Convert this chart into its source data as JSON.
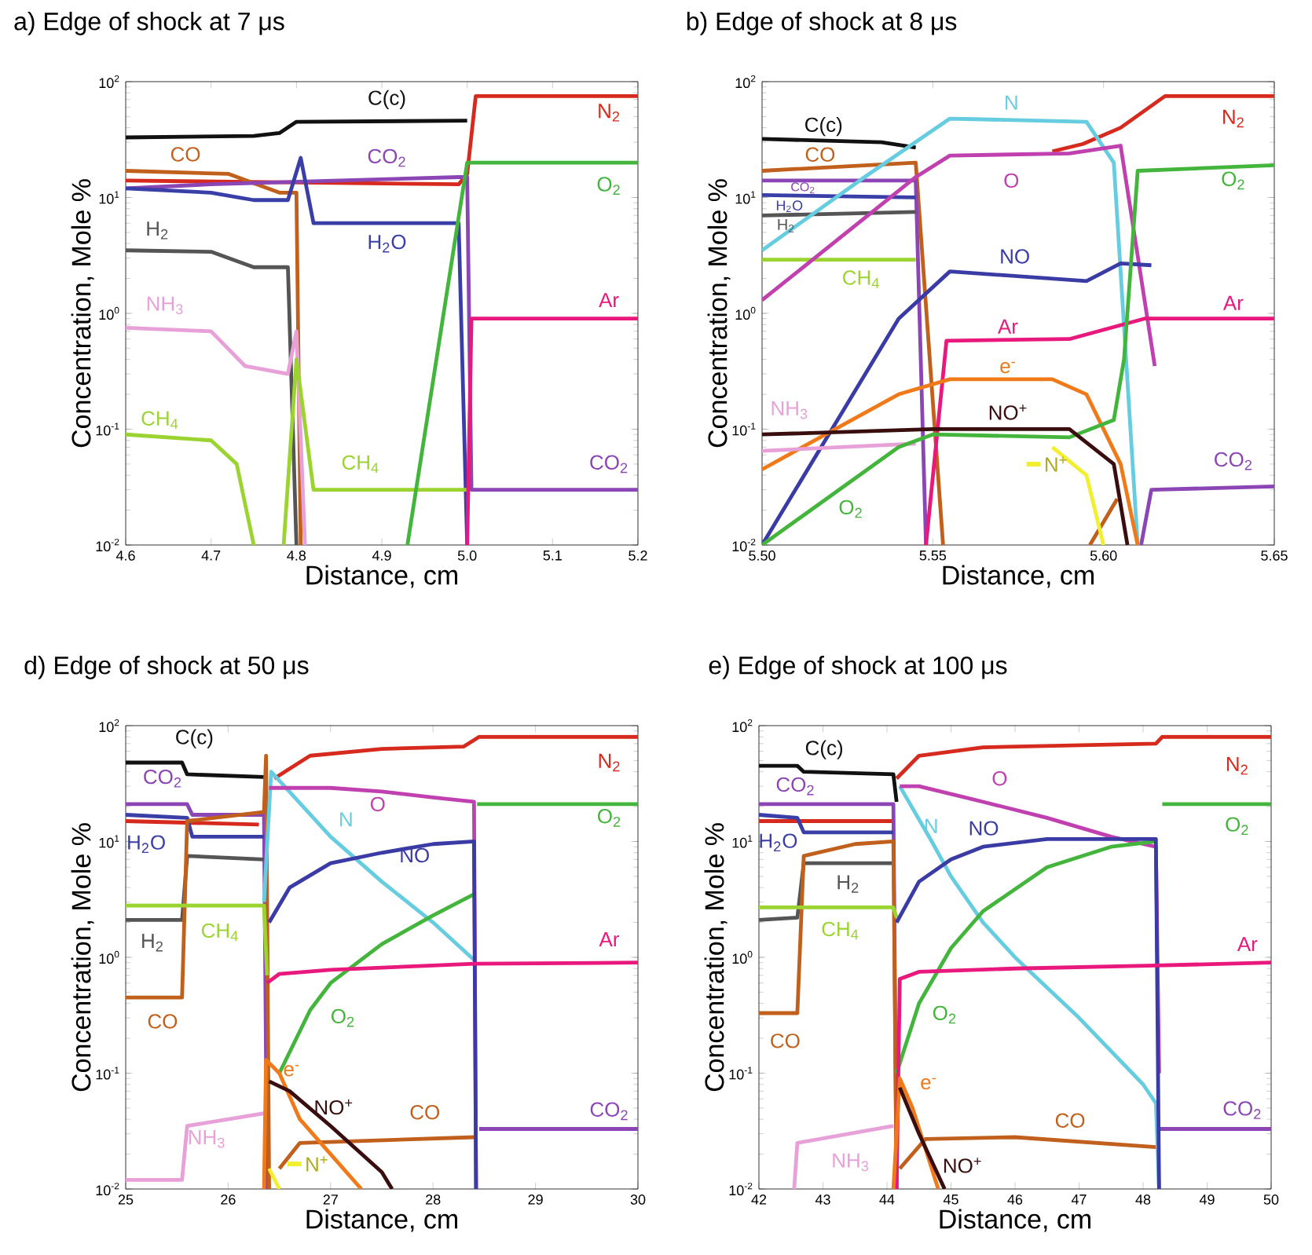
{
  "chart_data": [
    {
      "type": "line",
      "title": "a) Edge of shock at 7 μs",
      "xlabel": "Distance, cm",
      "ylabel": "Concentration, Mole %",
      "log": true,
      "xlim": [
        4.6,
        5.2
      ],
      "xticks": [
        4.6,
        4.7,
        4.8,
        4.9,
        {
          "value": 5.0,
          "label": "5.0"
        },
        5.1,
        5.2
      ],
      "ylim": [
        0.01,
        100
      ],
      "yticks": [
        {
          "value": 0.01,
          "label": "10$^{-2}$"
        },
        {
          "value": 0.1,
          "label": "10$^{-1}$"
        },
        {
          "value": 1,
          "label": "10$^{0}$"
        },
        {
          "value": 10,
          "label": "10$^{1}$"
        },
        {
          "value": 100,
          "label": "10$^{2}$"
        }
      ],
      "series": [
        {
          "name": "C(c)",
          "color": "#111111",
          "x": [
            4.6,
            4.75,
            4.78,
            4.8,
            5.0
          ],
          "values": [
            33,
            34,
            36,
            45,
            46
          ]
        },
        {
          "name": "N$_{2}$",
          "color": "#D62A1E",
          "x": [
            4.6,
            4.99,
            5.0,
            5.01,
            5.2
          ],
          "values": [
            14,
            13,
            16,
            75,
            75
          ]
        },
        {
          "name": "CO",
          "color": "#C0601C",
          "x": [
            4.6,
            4.72,
            4.78,
            4.8,
            4.805
          ],
          "values": [
            17,
            16,
            11,
            11,
            0.01
          ]
        },
        {
          "name": "CO$_{2}$",
          "color": "#8B45B5",
          "x": [
            4.6,
            4.7,
            4.99,
            5.0,
            5.005,
            5.2
          ],
          "values": [
            12,
            13,
            15,
            15,
            0.03,
            0.03
          ]
        },
        {
          "name": "H$_{2}$O",
          "color": "#3A3FA8",
          "x": [
            4.6,
            4.7,
            4.75,
            4.79,
            4.805,
            4.82,
            4.99,
            5.0
          ],
          "values": [
            12,
            11,
            9.5,
            9.5,
            22,
            6,
            6,
            0.01
          ]
        },
        {
          "name": "H$_{2}$",
          "color": "#555555",
          "x": [
            4.6,
            4.7,
            4.75,
            4.79,
            4.8
          ],
          "values": [
            3.5,
            3.4,
            2.5,
            2.5,
            0.01
          ]
        },
        {
          "name": "NH$_{3}$",
          "color": "#E8A0D8",
          "x": [
            4.6,
            4.7,
            4.74,
            4.79,
            4.8,
            4.81
          ],
          "values": [
            0.75,
            0.7,
            0.35,
            0.3,
            0.7,
            0.01
          ]
        },
        {
          "name": "CH$_{4}$",
          "color": "#9BD430",
          "x": [
            4.6,
            4.7,
            4.73,
            4.75,
            4.77,
            4.785,
            4.8,
            4.82,
            5.0
          ],
          "values": [
            0.09,
            0.08,
            0.05,
            0.01,
            null,
            0.01,
            0.4,
            0.03,
            0.03
          ]
        },
        {
          "name": "O$_{2}$",
          "color": "#44B53C",
          "x": [
            4.93,
            5.0,
            5.2
          ],
          "values": [
            0.01,
            20,
            20
          ]
        },
        {
          "name": "Ar",
          "color": "#E8187C",
          "x": [
            5.0,
            5.005,
            5.2
          ],
          "values": [
            0.01,
            0.9,
            0.9
          ]
        }
      ]
    },
    {
      "type": "line",
      "title": "b) Edge of shock at 8 μs",
      "xlabel": "Distance, cm",
      "ylabel": "Concentration, Mole %",
      "log": true,
      "xlim": [
        5.5,
        5.65
      ],
      "xticks": [
        {
          "value": 5.5,
          "label": "5.50"
        },
        {
          "value": 5.55,
          "label": "5.55"
        },
        {
          "value": 5.6,
          "label": "5.60"
        },
        {
          "value": 5.65,
          "label": "5.65"
        }
      ],
      "ylim": [
        0.01,
        100
      ],
      "yticks": [
        {
          "value": 0.01,
          "label": "10$^{-2}$"
        },
        {
          "value": 0.1,
          "label": "10$^{-1}$"
        },
        {
          "value": 1,
          "label": "10$^{0}$"
        },
        {
          "value": 10,
          "label": "10$^{1}$"
        },
        {
          "value": 100,
          "label": "10$^{2}$"
        }
      ],
      "series": [
        {
          "name": "C(c)",
          "color": "#111111",
          "x": [
            5.5,
            5.535,
            5.545
          ],
          "values": [
            32,
            30,
            27
          ]
        },
        {
          "name": "N$_{2}$",
          "color": "#D62A1E",
          "x": [
            5.585,
            5.594,
            5.605,
            5.618,
            5.65
          ],
          "values": [
            25,
            29,
            40,
            75,
            75
          ]
        },
        {
          "name": "CO",
          "color": "#C0601C",
          "x": [
            5.5,
            5.545,
            5.553,
            5.575,
            5.596,
            5.604
          ],
          "values": [
            17,
            20,
            0.01,
            null,
            0.01,
            0.025
          ]
        },
        {
          "name": "CO$_{2}$",
          "color": "#8B45B5",
          "x": [
            5.5,
            5.545,
            5.548,
            5.58,
            5.611,
            5.614,
            5.65
          ],
          "values": [
            14,
            14,
            0.01,
            null,
            0.01,
            0.03,
            0.032
          ]
        },
        {
          "name": "H$_{2}$O",
          "color": "#3A3FA8",
          "x": [
            5.5,
            5.545
          ],
          "values": [
            10.5,
            10
          ]
        },
        {
          "name": "H$_{2}$",
          "color": "#555555",
          "x": [
            5.5,
            5.545
          ],
          "values": [
            7,
            7.5
          ]
        },
        {
          "name": "CH$_{4}$",
          "color": "#9BD430",
          "x": [
            5.5,
            5.545
          ],
          "values": [
            2.9,
            2.9
          ]
        },
        {
          "name": "N",
          "color": "#66CCE0",
          "x": [
            5.5,
            5.53,
            5.555,
            5.595,
            5.603,
            5.61
          ],
          "values": [
            3.5,
            15,
            48,
            45,
            20,
            0.01
          ]
        },
        {
          "name": "O",
          "color": "#C040B0",
          "x": [
            5.5,
            5.545,
            5.555,
            5.59,
            5.605,
            5.615
          ],
          "values": [
            1.3,
            15,
            23,
            24,
            28,
            0.35
          ]
        },
        {
          "name": "NO",
          "color": "#3B3BA5",
          "x": [
            5.5,
            5.54,
            5.555,
            5.595,
            5.605,
            5.614
          ],
          "values": [
            0.01,
            0.9,
            2.3,
            1.9,
            2.7,
            2.6
          ]
        },
        {
          "name": "Ar",
          "color": "#E8187C",
          "x": [
            5.548,
            5.554,
            5.59,
            5.612,
            5.65
          ],
          "values": [
            0.01,
            0.58,
            0.6,
            0.9,
            0.9
          ]
        },
        {
          "name": "e$^{-}$",
          "color": "#F07A1A",
          "x": [
            5.5,
            5.54,
            5.555,
            5.585,
            5.595,
            5.605,
            5.61
          ],
          "values": [
            0.045,
            0.2,
            0.27,
            0.27,
            0.2,
            0.05,
            0.01
          ]
        },
        {
          "name": "NH$_{3}$",
          "color": "#E8A0D8",
          "x": [
            5.5,
            5.545
          ],
          "values": [
            0.065,
            0.075
          ]
        },
        {
          "name": "O$_{2}$",
          "color": "#44B53C",
          "x": [
            5.5,
            5.54,
            5.55,
            5.59,
            5.603,
            5.606,
            5.61,
            5.65
          ],
          "values": [
            0.01,
            0.07,
            0.09,
            0.085,
            0.12,
            0.4,
            17,
            19
          ]
        },
        {
          "name": "N$^{+}$",
          "color": "#F2EE30",
          "x": [
            5.585,
            5.595,
            5.6
          ],
          "values": [
            0.07,
            0.04,
            0.01
          ]
        },
        {
          "name": "NO$^{+}$",
          "color": "#3A0E0E",
          "x": [
            5.5,
            5.55,
            5.59,
            5.603,
            5.607
          ],
          "values": [
            0.09,
            0.1,
            0.1,
            0.05,
            0.01
          ]
        }
      ]
    },
    {
      "type": "line",
      "title": "d) Edge of shock at 50 μs",
      "xlabel": "Distance, cm",
      "ylabel": "Concentration, Mole %",
      "log": true,
      "xlim": [
        25,
        30
      ],
      "xticks": [
        25,
        26,
        27,
        28,
        29,
        30
      ],
      "ylim": [
        0.01,
        100
      ],
      "yticks": [
        {
          "value": 0.01,
          "label": "10$^{-2}$"
        },
        {
          "value": 0.1,
          "label": "10$^{-1}$"
        },
        {
          "value": 1,
          "label": "10$^{0}$"
        },
        {
          "value": 10,
          "label": "10$^{1}$"
        },
        {
          "value": 100,
          "label": "10$^{2}$"
        }
      ],
      "series": [
        {
          "name": "C(c)",
          "color": "#111111",
          "x": [
            25,
            25.55,
            25.6,
            26.35
          ],
          "values": [
            48,
            48,
            38,
            36
          ]
        },
        {
          "name": "N$_{2}$",
          "color": "#D62A1E",
          "x": [
            25,
            26.3,
            26.38,
            26.45,
            26.8,
            27.5,
            28.3,
            28.45,
            30
          ],
          "values": [
            15,
            14,
            null,
            35,
            55,
            63,
            66,
            80,
            80
          ]
        },
        {
          "name": "CO$_{2}$",
          "color": "#8B45B5",
          "x": [
            25,
            25.6,
            25.65,
            26.35,
            26.38,
            27.5,
            28.45,
            30
          ],
          "values": [
            21,
            21,
            17,
            17,
            0.01,
            null,
            0.033,
            0.033
          ]
        },
        {
          "name": "H$_{2}$O",
          "color": "#3A3FA8",
          "x": [
            25,
            25.6,
            25.65,
            26.35
          ],
          "values": [
            17,
            16,
            11,
            11
          ]
        },
        {
          "name": "H$_{2}$",
          "color": "#555555",
          "x": [
            25,
            25.55,
            25.6,
            26.35
          ],
          "values": [
            2.1,
            2.1,
            7.5,
            7
          ]
        },
        {
          "name": "CO",
          "color": "#C0601C",
          "x": [
            25,
            25.55,
            25.6,
            26.35,
            26.37,
            26.4,
            26.45,
            26.5,
            26.7,
            28.4
          ],
          "values": [
            0.45,
            0.45,
            15,
            18,
            55,
            0.01,
            null,
            0.015,
            0.025,
            0.028
          ]
        },
        {
          "name": "CH$_{4}$",
          "color": "#9BD430",
          "x": [
            25,
            26.35,
            26.38
          ],
          "values": [
            2.8,
            2.8,
            0.7
          ]
        },
        {
          "name": "NH$_{3}$",
          "color": "#E8A0D8",
          "x": [
            25,
            25.55,
            25.6,
            26.35
          ],
          "values": [
            0.012,
            0.012,
            0.035,
            0.045
          ]
        },
        {
          "name": "N",
          "color": "#66CCE0",
          "x": [
            26.35,
            26.42,
            27,
            27.5,
            28,
            28.4
          ],
          "values": [
            3,
            40,
            11,
            4.5,
            2,
            0.95
          ]
        },
        {
          "name": "O",
          "color": "#C040B0",
          "x": [
            26.4,
            27,
            27.5,
            28,
            28.4,
            28.42
          ],
          "values": [
            29,
            29,
            27,
            24,
            22,
            0.01
          ]
        },
        {
          "name": "O$_{2}$",
          "color": "#44B53C",
          "x": [
            26.5,
            26.8,
            27,
            27.5,
            28,
            28.4,
            28.41,
            28.43,
            30
          ],
          "values": [
            0.1,
            0.35,
            0.6,
            1.3,
            2.3,
            3.5,
            null,
            21,
            21
          ]
        },
        {
          "name": "NO",
          "color": "#3B3BA5",
          "x": [
            26.4,
            26.6,
            27,
            27.5,
            28,
            28.4,
            28.42
          ],
          "values": [
            2,
            4,
            6.5,
            8,
            9.5,
            10,
            0.01
          ]
        },
        {
          "name": "Ar",
          "color": "#E8187C",
          "x": [
            26.38,
            26.5,
            27,
            28,
            28.4,
            30
          ],
          "values": [
            0.6,
            0.72,
            0.78,
            0.85,
            0.88,
            0.9
          ]
        },
        {
          "name": "e$^{-}$",
          "color": "#F07A1A",
          "x": [
            26.35,
            26.37,
            26.5,
            26.7,
            27,
            27.3
          ],
          "values": [
            0.01,
            0.13,
            0.1,
            0.04,
            0.02,
            0.01
          ]
        },
        {
          "name": "N$^{+}$",
          "color": "#F2EE30",
          "x": [
            26.4,
            26.5
          ],
          "values": [
            0.015,
            0.01
          ]
        },
        {
          "name": "NO$^{+}$",
          "color": "#3A0E0E",
          "x": [
            26.4,
            26.6,
            27,
            27.5,
            27.6
          ],
          "values": [
            0.085,
            0.07,
            0.035,
            0.014,
            0.01
          ]
        }
      ]
    },
    {
      "type": "line",
      "title": "e) Edge of shock at 100 μs",
      "xlabel": "Distance, cm",
      "ylabel": "Concentration, Mole %",
      "log": true,
      "xlim": [
        42,
        50
      ],
      "xticks": [
        42,
        43,
        44,
        45,
        46,
        47,
        48,
        49,
        50
      ],
      "ylim": [
        0.01,
        100
      ],
      "yticks": [
        {
          "value": 0.01,
          "label": "10$^{-2}$"
        },
        {
          "value": 0.1,
          "label": "10$^{-1}$"
        },
        {
          "value": 1,
          "label": "10$^{0}$"
        },
        {
          "value": 10,
          "label": "10$^{1}$"
        },
        {
          "value": 100,
          "label": "10$^{2}$"
        }
      ],
      "series": [
        {
          "name": "C(c)",
          "color": "#111111",
          "x": [
            42,
            42.6,
            42.7,
            44.1,
            44.15
          ],
          "values": [
            45,
            45,
            40,
            38,
            22
          ]
        },
        {
          "name": "N$_{2}$",
          "color": "#D62A1E",
          "x": [
            42,
            44.1,
            44.12,
            44.15,
            44.5,
            45.5,
            48.2,
            48.3,
            50
          ],
          "values": [
            15,
            15,
            null,
            35,
            55,
            65,
            70,
            80,
            80
          ]
        },
        {
          "name": "CO$_{2}$",
          "color": "#8B45B5",
          "x": [
            42,
            44.1,
            44.15,
            46,
            48.25,
            50
          ],
          "values": [
            21,
            21,
            0.01,
            null,
            0.033,
            0.033
          ]
        },
        {
          "name": "H$_{2}$O",
          "color": "#3A3FA8",
          "x": [
            42,
            42.6,
            42.7,
            44.1
          ],
          "values": [
            17,
            16,
            12,
            12
          ]
        },
        {
          "name": "H$_{2}$",
          "color": "#555555",
          "x": [
            42,
            42.6,
            42.7,
            44.1
          ],
          "values": [
            2.1,
            2.2,
            6.5,
            6.5
          ]
        },
        {
          "name": "CO",
          "color": "#C0601C",
          "x": [
            42,
            42.6,
            42.7,
            43.5,
            44.1,
            44.15,
            44.17,
            44.2,
            44.6,
            46,
            48.2
          ],
          "values": [
            0.33,
            0.33,
            7.5,
            9.5,
            10,
            0.01,
            null,
            0.015,
            0.027,
            0.028,
            0.023
          ]
        },
        {
          "name": "CH$_{4}$",
          "color": "#9BD430",
          "x": [
            42,
            44.1,
            44.15
          ],
          "values": [
            2.7,
            2.7,
            2.2
          ]
        },
        {
          "name": "NH$_{3}$",
          "color": "#E8A0D8",
          "x": [
            42.55,
            42.6,
            44.1
          ],
          "values": [
            0.01,
            0.025,
            0.035
          ]
        },
        {
          "name": "N",
          "color": "#66CCE0",
          "x": [
            44.2,
            44.7,
            45,
            45.5,
            46,
            47,
            48,
            48.2,
            48.25
          ],
          "values": [
            30,
            10,
            5,
            2,
            1,
            0.3,
            0.08,
            0.055,
            0.01
          ]
        },
        {
          "name": "O",
          "color": "#C040B0",
          "x": [
            44.2,
            44.5,
            45.5,
            46.5,
            47.5,
            48.2,
            48.25
          ],
          "values": [
            30,
            30,
            22,
            16,
            11,
            9,
            0.1
          ]
        },
        {
          "name": "O$_{2}$",
          "color": "#44B53C",
          "x": [
            44.15,
            44.5,
            45,
            45.5,
            46.5,
            47.5,
            48.2,
            48.25,
            48.3,
            50
          ],
          "values": [
            0.1,
            0.4,
            1.2,
            2.5,
            6,
            9,
            10,
            null,
            21,
            21
          ]
        },
        {
          "name": "NO",
          "color": "#3B3BA5",
          "x": [
            44.15,
            44.5,
            45,
            45.5,
            46.5,
            48.2,
            48.25
          ],
          "values": [
            2,
            4.5,
            7,
            9,
            10.5,
            10.5,
            0.01
          ]
        },
        {
          "name": "Ar",
          "color": "#E8187C",
          "x": [
            44.15,
            44.2,
            44.5,
            46,
            48.2,
            50
          ],
          "values": [
            0.01,
            0.65,
            0.75,
            0.8,
            0.85,
            0.9
          ]
        },
        {
          "name": "e$^{-}$",
          "color": "#F07A1A",
          "x": [
            44.1,
            44.2,
            44.4,
            44.8
          ],
          "values": [
            0.01,
            0.09,
            0.05,
            0.01
          ]
        },
        {
          "name": "NO$^{+}$",
          "color": "#3A0E0E",
          "x": [
            44.2,
            44.5,
            44.9
          ],
          "values": [
            0.075,
            0.03,
            0.01
          ]
        }
      ]
    }
  ]
}
